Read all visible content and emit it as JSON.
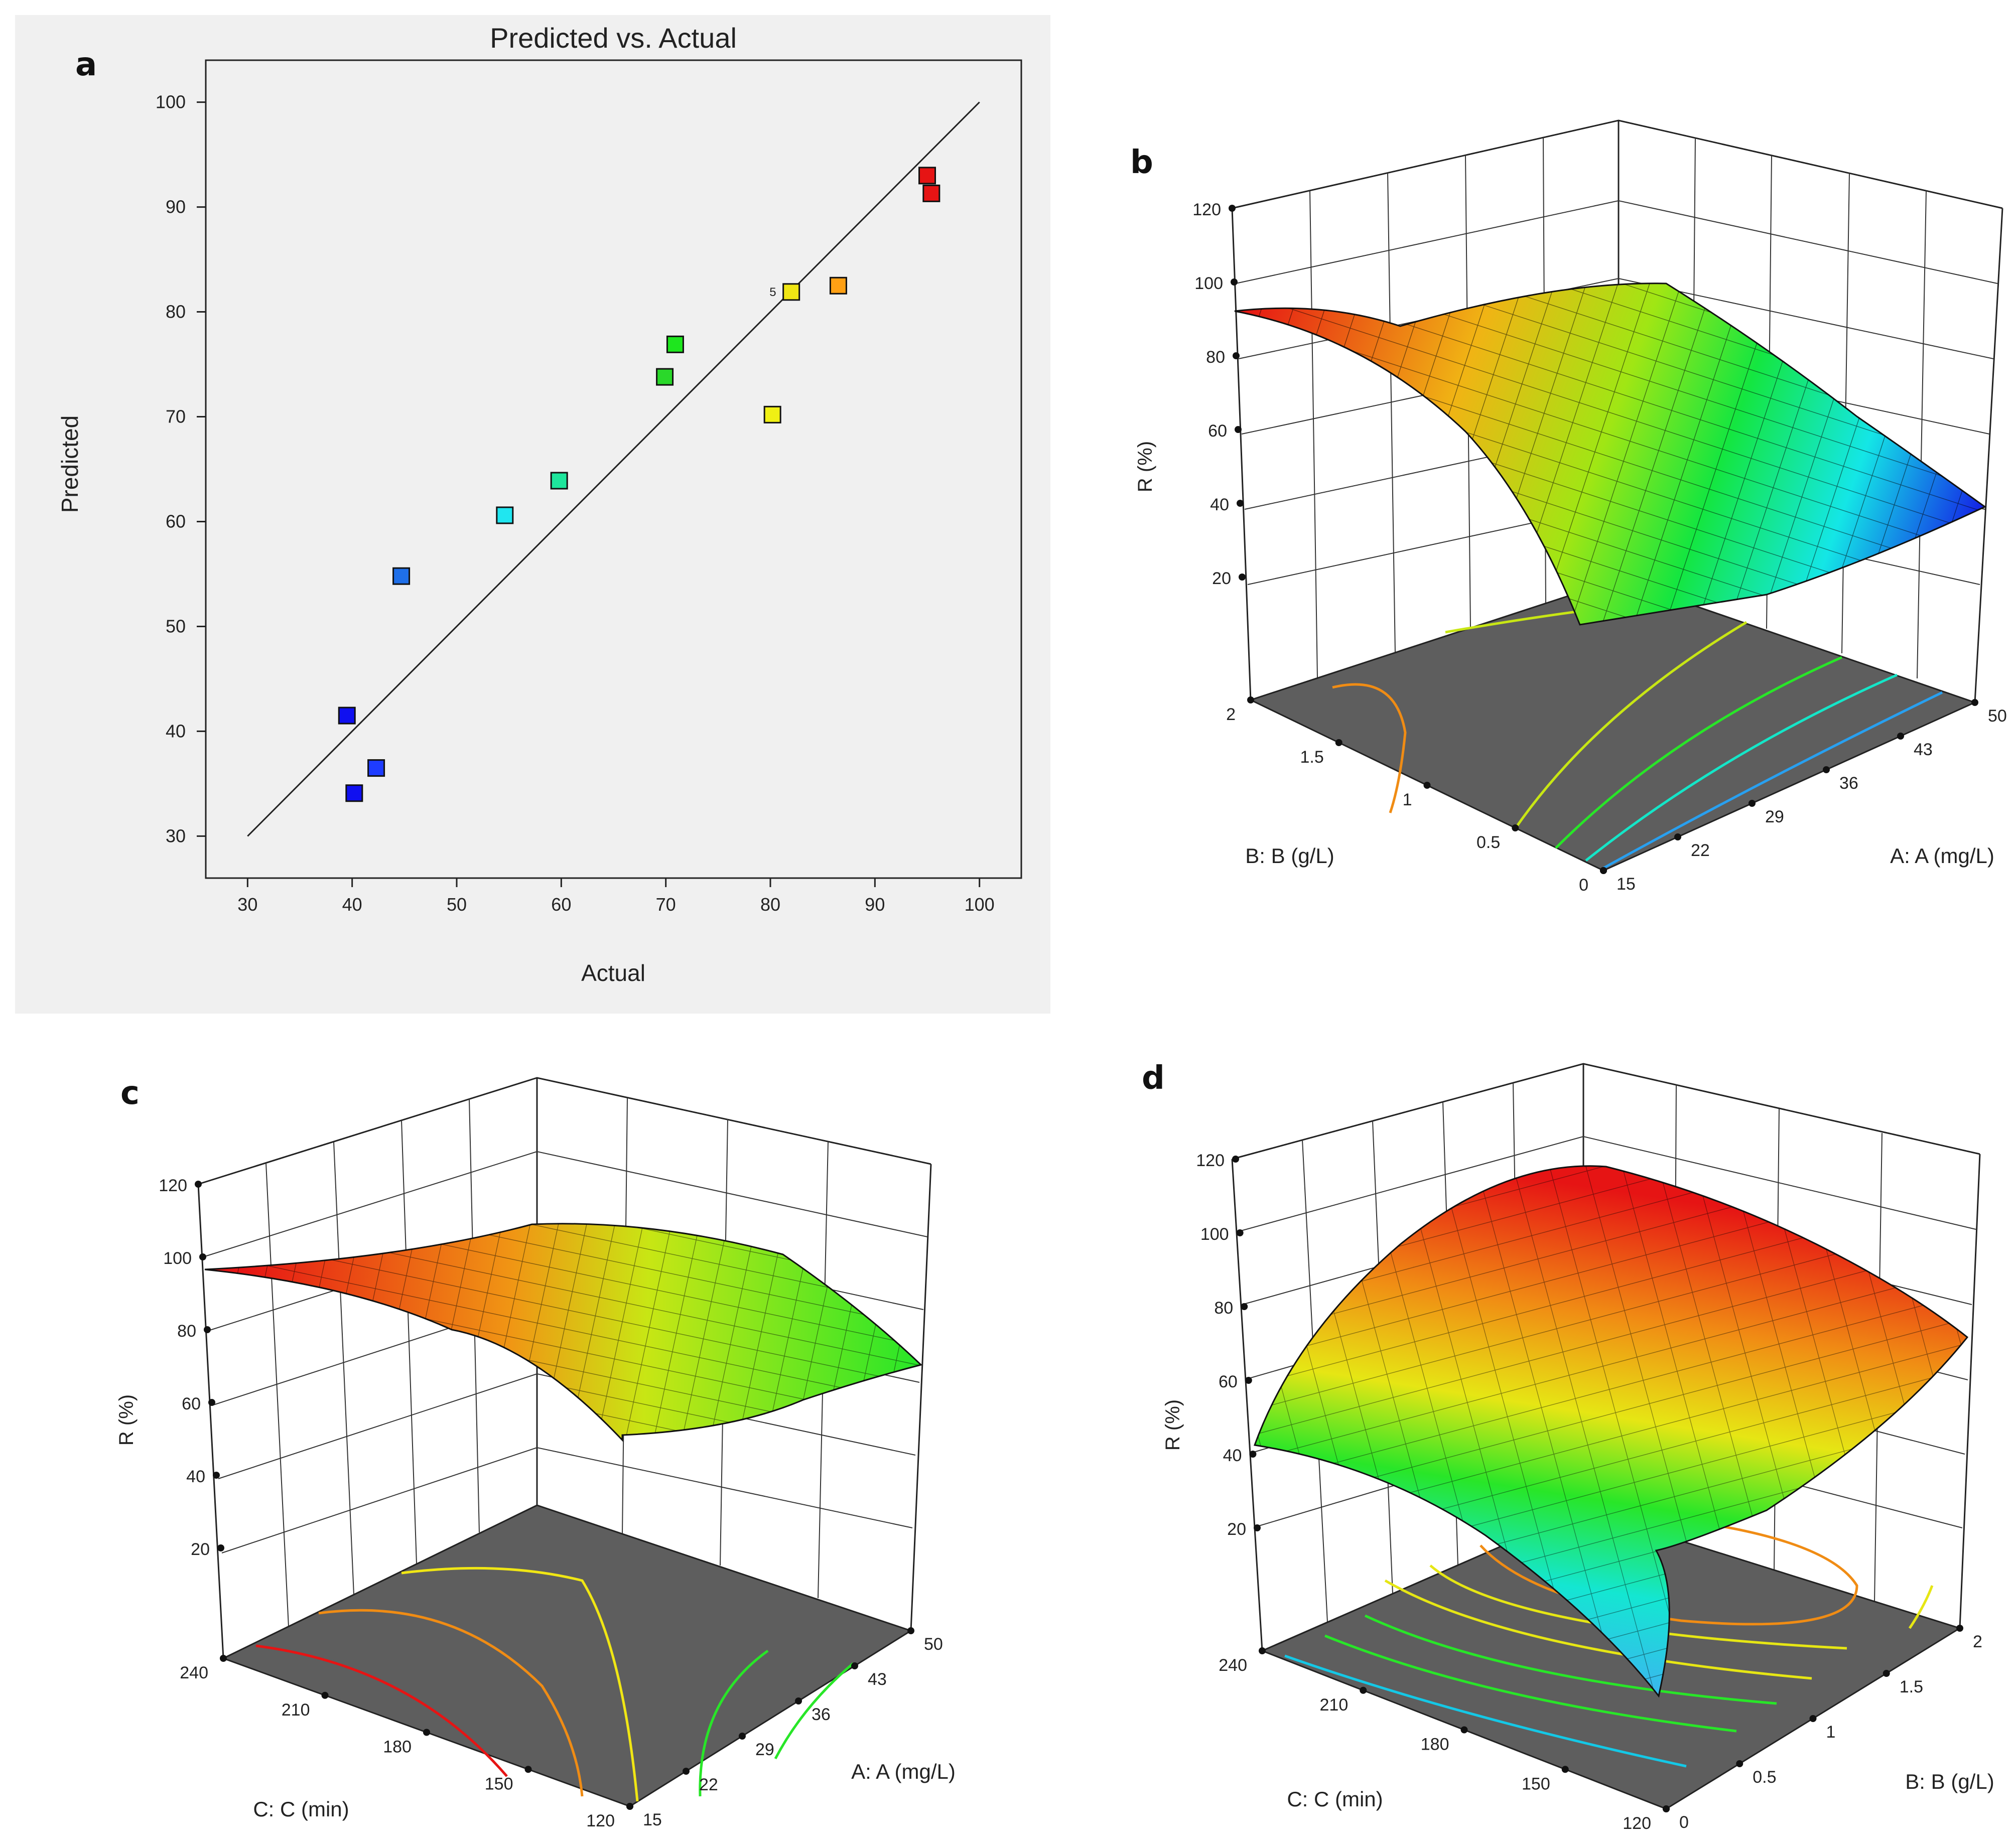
{
  "chart_data": [
    {
      "panel": "a",
      "type": "scatter",
      "title": "Predicted vs. Actual",
      "xlabel": "Actual",
      "ylabel": "Predicted",
      "xlim": [
        26,
        104
      ],
      "ylim": [
        26,
        104
      ],
      "xticks": [
        30,
        40,
        50,
        60,
        70,
        80,
        90,
        100
      ],
      "yticks": [
        30,
        40,
        50,
        60,
        70,
        80,
        90,
        100
      ],
      "reference_line": {
        "from": [
          30,
          30
        ],
        "to": [
          100,
          100
        ]
      },
      "points": [
        {
          "x": 39.5,
          "y": 41.5,
          "color": "#1010f0"
        },
        {
          "x": 40.2,
          "y": 34.1,
          "color": "#1010f0"
        },
        {
          "x": 42.3,
          "y": 36.5,
          "color": "#1e3cff"
        },
        {
          "x": 44.7,
          "y": 54.8,
          "color": "#1f6fe8"
        },
        {
          "x": 54.6,
          "y": 60.6,
          "color": "#20e6f0"
        },
        {
          "x": 59.8,
          "y": 63.9,
          "color": "#1ee69c"
        },
        {
          "x": 69.9,
          "y": 73.8,
          "color": "#2ad82a"
        },
        {
          "x": 70.9,
          "y": 76.9,
          "color": "#1ee61e"
        },
        {
          "x": 80.2,
          "y": 70.2,
          "color": "#f0f014"
        },
        {
          "x": 82.0,
          "y": 81.9,
          "color": "#f0e614",
          "label": "5"
        },
        {
          "x": 86.5,
          "y": 82.5,
          "color": "#ffa014"
        },
        {
          "x": 95.0,
          "y": 93.0,
          "color": "#e61414"
        },
        {
          "x": 95.4,
          "y": 91.3,
          "color": "#e61414"
        }
      ]
    },
    {
      "panel": "b",
      "type": "surface",
      "zlabel": "R (%)",
      "zticks": [
        20,
        40,
        60,
        80,
        100,
        120
      ],
      "x_axis": {
        "label": "A: A (mg/L)",
        "ticks": [
          15,
          22,
          29,
          36,
          43,
          50
        ]
      },
      "y_axis": {
        "label": "B: B (g/L)",
        "ticks": [
          0,
          0.5,
          1,
          1.5,
          2
        ]
      }
    },
    {
      "panel": "c",
      "type": "surface",
      "zlabel": "R (%)",
      "zticks": [
        20,
        40,
        60,
        80,
        100,
        120
      ],
      "x_axis": {
        "label": "A: A (mg/L)",
        "ticks": [
          15,
          22,
          29,
          36,
          43,
          50
        ]
      },
      "y_axis": {
        "label": "C: C (min)",
        "ticks": [
          120,
          150,
          180,
          210,
          240
        ]
      }
    },
    {
      "panel": "d",
      "type": "surface",
      "zlabel": "R (%)",
      "zticks": [
        20,
        40,
        60,
        80,
        100,
        120
      ],
      "x_axis": {
        "label": "B: B (g/L)",
        "ticks": [
          0,
          0.5,
          1,
          1.5,
          2
        ]
      },
      "y_axis": {
        "label": "C: C (min)",
        "ticks": [
          120,
          150,
          180,
          210,
          240
        ]
      }
    }
  ],
  "panels": {
    "a": "a",
    "b": "b",
    "c": "c",
    "d": "d"
  }
}
